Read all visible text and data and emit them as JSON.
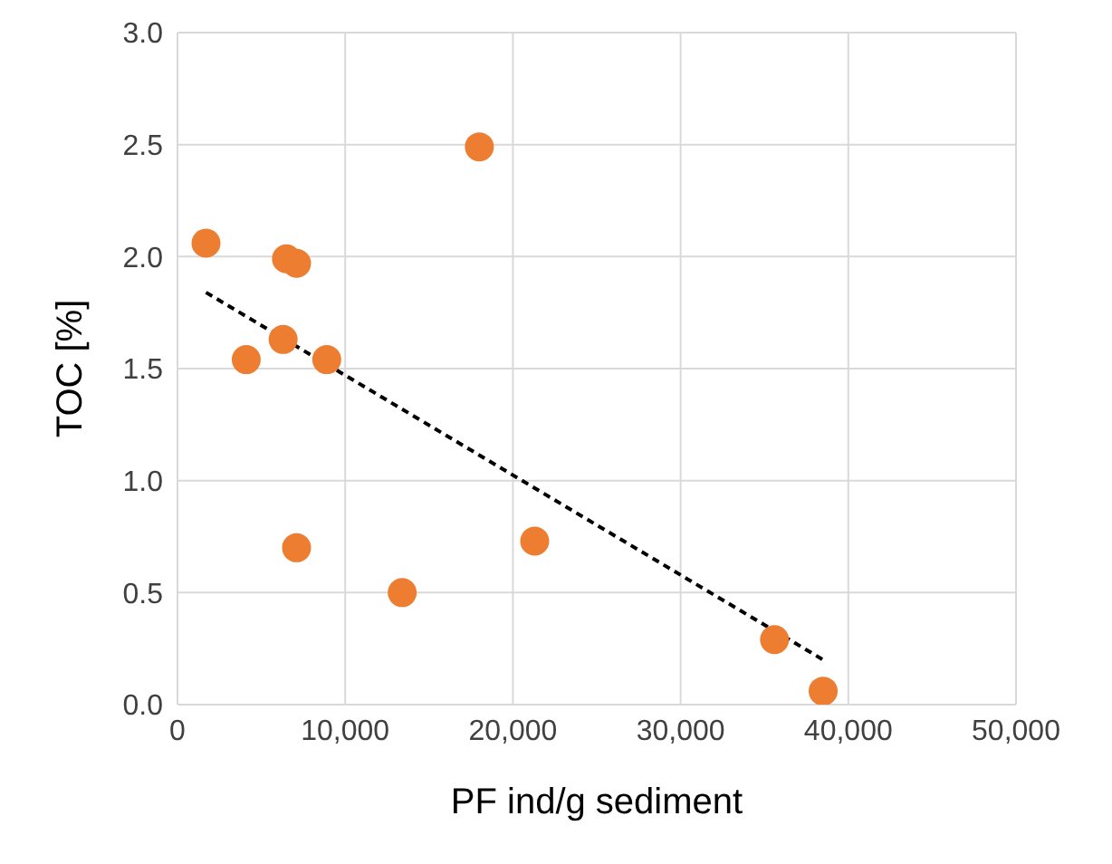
{
  "chart_data": {
    "type": "scatter",
    "xlabel": "PF ind/g sediment",
    "ylabel": "TOC [%]",
    "xlim": [
      0,
      50000
    ],
    "xticks": [
      {
        "value": 0,
        "label": "0"
      },
      {
        "value": 10000,
        "label": "10,000"
      },
      {
        "value": 20000,
        "label": "20,000"
      },
      {
        "value": 30000,
        "label": "30,000"
      },
      {
        "value": 40000,
        "label": "40,000"
      },
      {
        "value": 50000,
        "label": "50,000"
      }
    ],
    "ylim": [
      0,
      3
    ],
    "yticks": [
      {
        "value": 0,
        "label": "0.0"
      },
      {
        "value": 0.5,
        "label": "0.5"
      },
      {
        "value": 1,
        "label": "1.0"
      },
      {
        "value": 1.5,
        "label": "1.5"
      },
      {
        "value": 2,
        "label": "2.0"
      },
      {
        "value": 2.5,
        "label": "2.5"
      },
      {
        "value": 3,
        "label": "3.0"
      }
    ],
    "grid": true,
    "marker": "circle",
    "series": [
      {
        "color": "#ed7d31",
        "x": [
          1700,
          4100,
          6500,
          7100,
          6300,
          7100,
          8900,
          13400,
          18000,
          21300,
          35600,
          38500
        ],
        "values": [
          2.06,
          1.54,
          1.99,
          1.97,
          1.63,
          0.7,
          1.54,
          0.5,
          2.49,
          0.73,
          0.29,
          0.06
        ]
      },
      {
        "type": "line",
        "color": "#000000",
        "line_style": "dashed",
        "marker": "none",
        "x": [
          1700,
          38500
        ],
        "values": [
          1.84,
          0.2
        ]
      }
    ]
  }
}
